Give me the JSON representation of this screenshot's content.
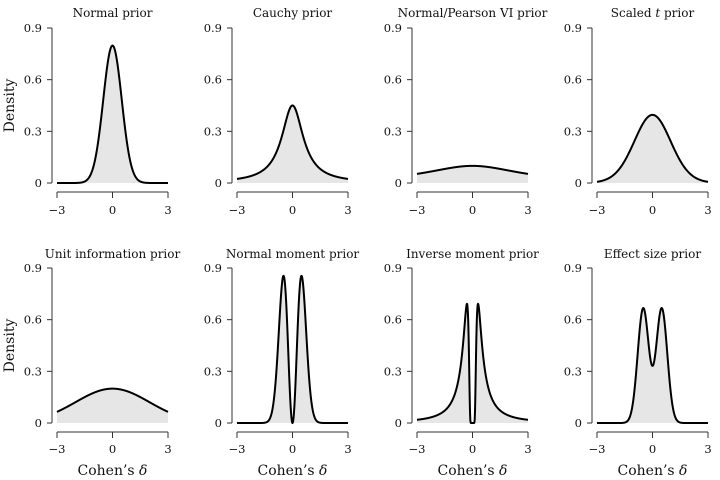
{
  "chart_data": [
    {
      "type": "area",
      "title": "Normal prior",
      "xlabel": "",
      "ylabel": "Density",
      "xlim": [
        -3,
        3
      ],
      "ylim": [
        0,
        0.9
      ],
      "xticks": [
        "−3",
        "0",
        "3"
      ],
      "yticks": [
        "0",
        "0.3",
        "0.6",
        "0.9"
      ],
      "distribution": {
        "family": "normal",
        "mean": 0,
        "sd": 0.5
      },
      "peak_density": 0.8,
      "fill_color": "#e6e6e6"
    },
    {
      "type": "area",
      "title": "Cauchy prior",
      "xlabel": "",
      "ylabel": "",
      "xlim": [
        -3,
        3
      ],
      "ylim": [
        0,
        0.9
      ],
      "xticks": [
        "−3",
        "0",
        "3"
      ],
      "yticks": [
        "0",
        "0.3",
        "0.6",
        "0.9"
      ],
      "distribution": {
        "family": "cauchy",
        "location": 0,
        "scale": 0.707
      },
      "peak_density": 0.45,
      "fill_color": "#e6e6e6"
    },
    {
      "type": "area",
      "title": "Normal/Pearson VI prior",
      "xlabel": "",
      "ylabel": "",
      "xlim": [
        -3,
        3
      ],
      "ylim": [
        0,
        0.9
      ],
      "xticks": [
        "−3",
        "0",
        "3"
      ],
      "yticks": [
        "0",
        "0.3",
        "0.6",
        "0.9"
      ],
      "distribution": {
        "family": "cauchy",
        "location": 0,
        "scale": 3.2
      },
      "peak_density": 0.1,
      "fill_color": "#e6e6e6"
    },
    {
      "type": "area",
      "title": "Scaled t prior",
      "title_italic_part": "t",
      "xlabel": "",
      "ylabel": "",
      "xlim": [
        -3,
        3
      ],
      "ylim": [
        0,
        0.9
      ],
      "xticks": [
        "−3",
        "0",
        "3"
      ],
      "yticks": [
        "0",
        "0.3",
        "0.6",
        "0.9"
      ],
      "distribution": {
        "family": "t",
        "location": 0,
        "scale": 1,
        "df": 30
      },
      "peak_density": 0.39,
      "fill_color": "#e6e6e6"
    },
    {
      "type": "area",
      "title": "Unit information prior",
      "xlabel": "Cohen’s δ",
      "ylabel": "Density",
      "xlim": [
        -3,
        3
      ],
      "ylim": [
        0,
        0.9
      ],
      "xticks": [
        "−3",
        "0",
        "3"
      ],
      "yticks": [
        "0",
        "0.3",
        "0.6",
        "0.9"
      ],
      "distribution": {
        "family": "normal",
        "mean": 0,
        "sd": 2
      },
      "peak_density": 0.2,
      "fill_color": "#e6e6e6"
    },
    {
      "type": "area",
      "title": "Normal moment prior",
      "xlabel": "Cohen’s δ",
      "ylabel": "",
      "xlim": [
        -3,
        3
      ],
      "ylim": [
        0,
        0.9
      ],
      "xticks": [
        "−3",
        "0",
        "3"
      ],
      "yticks": [
        "0",
        "0.3",
        "0.6",
        "0.9"
      ],
      "distribution": {
        "family": "normal-moment",
        "tau": 0.118
      },
      "peak_density": 0.87,
      "modes": [
        -0.5,
        0.5
      ],
      "fill_color": "#e6e6e6"
    },
    {
      "type": "area",
      "title": "Inverse moment prior",
      "xlabel": "Cohen’s δ",
      "ylabel": "",
      "xlim": [
        -3,
        3
      ],
      "ylim": [
        0,
        0.9
      ],
      "xticks": [
        "−3",
        "0",
        "3"
      ],
      "yticks": [
        "0",
        "0.3",
        "0.6",
        "0.9"
      ],
      "distribution": {
        "family": "inverse-moment",
        "tau": 0.09,
        "nu": 1
      },
      "peak_density": 0.75,
      "modes": [
        -0.3,
        0.3
      ],
      "fill_color": "#e6e6e6"
    },
    {
      "type": "area",
      "title": "Effect size prior",
      "xlabel": "Cohen’s δ",
      "ylabel": "",
      "xlim": [
        -3,
        3
      ],
      "ylim": [
        0,
        0.9
      ],
      "xticks": [
        "−3",
        "0",
        "3"
      ],
      "yticks": [
        "0",
        "0.3",
        "0.6",
        "0.9"
      ],
      "distribution": {
        "family": "normal-mixture",
        "means": [
          -0.5,
          0.5
        ],
        "sd": 0.3,
        "weights": [
          0.5,
          0.5
        ]
      },
      "peak_density": 0.67,
      "center_density": 0.33,
      "fill_color": "#e6e6e6"
    }
  ]
}
